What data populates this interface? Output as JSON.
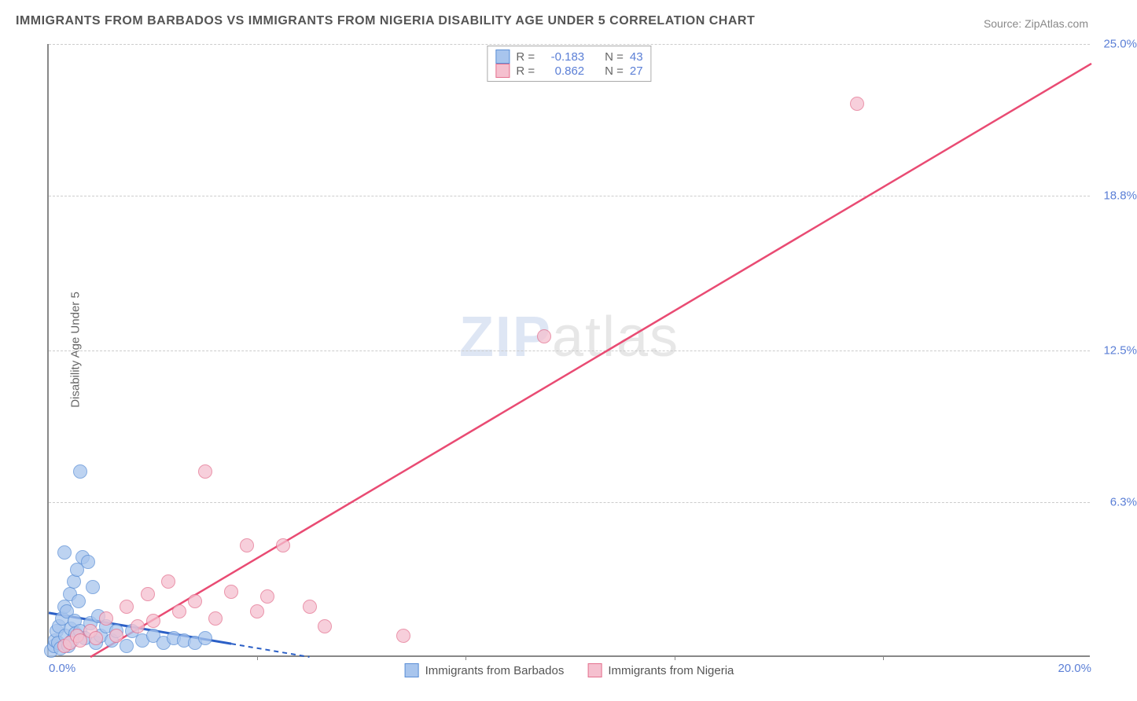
{
  "title": "IMMIGRANTS FROM BARBADOS VS IMMIGRANTS FROM NIGERIA DISABILITY AGE UNDER 5 CORRELATION CHART",
  "source": "Source: ZipAtlas.com",
  "watermark_zip": "ZIP",
  "watermark_atlas": "atlas",
  "y_axis_label": "Disability Age Under 5",
  "chart": {
    "type": "scatter",
    "xlim": [
      0,
      20
    ],
    "ylim": [
      0,
      25
    ],
    "x_ticks": [
      0,
      4,
      8,
      12,
      16,
      20
    ],
    "y_ticks": [
      6.3,
      12.5,
      18.8,
      25.0
    ],
    "y_tick_labels": [
      "6.3%",
      "12.5%",
      "18.8%",
      "25.0%"
    ],
    "x_tick_min_label": "0.0%",
    "x_tick_max_label": "20.0%",
    "grid_color": "#cccccc",
    "axis_color": "#888888",
    "background_color": "#ffffff",
    "tick_label_color": "#5b7fd6"
  },
  "series": [
    {
      "name": "Immigrants from Barbados",
      "fill_color": "#a8c5ed",
      "stroke_color": "#5b8fd6",
      "r_value": "-0.183",
      "n_value": "43",
      "point_radius": 9,
      "trend": {
        "x1": 0,
        "y1": 1.8,
        "x2": 5,
        "y2": 0,
        "color": "#2b5fc6",
        "dashed_after_x": 3.5
      },
      "points": [
        [
          0.05,
          0.2
        ],
        [
          0.1,
          0.4
        ],
        [
          0.12,
          0.6
        ],
        [
          0.15,
          1.0
        ],
        [
          0.18,
          0.5
        ],
        [
          0.2,
          1.2
        ],
        [
          0.22,
          0.3
        ],
        [
          0.25,
          1.5
        ],
        [
          0.3,
          2.0
        ],
        [
          0.32,
          0.8
        ],
        [
          0.35,
          1.8
        ],
        [
          0.38,
          0.4
        ],
        [
          0.4,
          2.5
        ],
        [
          0.42,
          1.1
        ],
        [
          0.45,
          0.6
        ],
        [
          0.48,
          3.0
        ],
        [
          0.5,
          1.4
        ],
        [
          0.52,
          0.9
        ],
        [
          0.55,
          3.5
        ],
        [
          0.58,
          2.2
        ],
        [
          0.6,
          1.0
        ],
        [
          0.65,
          4.0
        ],
        [
          0.7,
          0.7
        ],
        [
          0.75,
          3.8
        ],
        [
          0.8,
          1.3
        ],
        [
          0.85,
          2.8
        ],
        [
          0.9,
          0.5
        ],
        [
          0.95,
          1.6
        ],
        [
          1.0,
          0.8
        ],
        [
          1.1,
          1.2
        ],
        [
          1.2,
          0.6
        ],
        [
          1.3,
          1.0
        ],
        [
          1.5,
          0.4
        ],
        [
          1.6,
          1.0
        ],
        [
          1.8,
          0.6
        ],
        [
          2.0,
          0.8
        ],
        [
          2.2,
          0.5
        ],
        [
          2.4,
          0.7
        ],
        [
          2.6,
          0.6
        ],
        [
          2.8,
          0.5
        ],
        [
          3.0,
          0.7
        ],
        [
          0.6,
          7.5
        ],
        [
          0.3,
          4.2
        ]
      ]
    },
    {
      "name": "Immigrants from Nigeria",
      "fill_color": "#f5c0cf",
      "stroke_color": "#e4718f",
      "r_value": "0.862",
      "n_value": "27",
      "point_radius": 9,
      "trend": {
        "x1": 0.8,
        "y1": 0,
        "x2": 20,
        "y2": 24.2,
        "color": "#e94b73",
        "dashed_after_x": null
      },
      "points": [
        [
          0.3,
          0.4
        ],
        [
          0.4,
          0.5
        ],
        [
          0.55,
          0.8
        ],
        [
          0.6,
          0.6
        ],
        [
          0.8,
          1.0
        ],
        [
          0.9,
          0.7
        ],
        [
          1.1,
          1.5
        ],
        [
          1.3,
          0.8
        ],
        [
          1.5,
          2.0
        ],
        [
          1.7,
          1.2
        ],
        [
          1.9,
          2.5
        ],
        [
          2.0,
          1.4
        ],
        [
          2.3,
          3.0
        ],
        [
          2.5,
          1.8
        ],
        [
          2.8,
          2.2
        ],
        [
          3.0,
          7.5
        ],
        [
          3.2,
          1.5
        ],
        [
          3.5,
          2.6
        ],
        [
          3.8,
          4.5
        ],
        [
          4.0,
          1.8
        ],
        [
          4.2,
          2.4
        ],
        [
          4.5,
          4.5
        ],
        [
          5.0,
          2.0
        ],
        [
          5.3,
          1.2
        ],
        [
          6.8,
          0.8
        ],
        [
          9.5,
          13.0
        ],
        [
          15.5,
          22.5
        ]
      ]
    }
  ],
  "legend_top": {
    "r_label": "R =",
    "n_label": "N ="
  }
}
